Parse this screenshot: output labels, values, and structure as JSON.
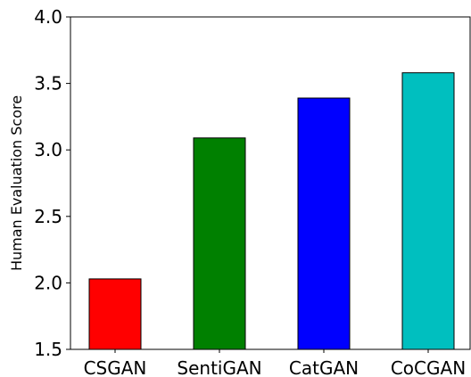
{
  "chart_data": {
    "type": "bar",
    "title": "",
    "xlabel": "",
    "ylabel": "Human Evaluation Score",
    "categories": [
      "CSGAN",
      "SentiGAN",
      "CatGAN",
      "CoCGAN"
    ],
    "values": [
      2.03,
      3.09,
      3.39,
      3.58
    ],
    "colors": [
      "#ff0000",
      "#008000",
      "#0000ff",
      "#00bfbf"
    ],
    "ylim": [
      1.5,
      4.0
    ],
    "yticks": [
      1.5,
      2.0,
      2.5,
      3.0,
      3.5,
      4.0
    ],
    "ytick_labels": [
      "1.5",
      "2.0",
      "2.5",
      "3.0",
      "3.5",
      "4.0"
    ],
    "grid": false,
    "legend": "none"
  }
}
